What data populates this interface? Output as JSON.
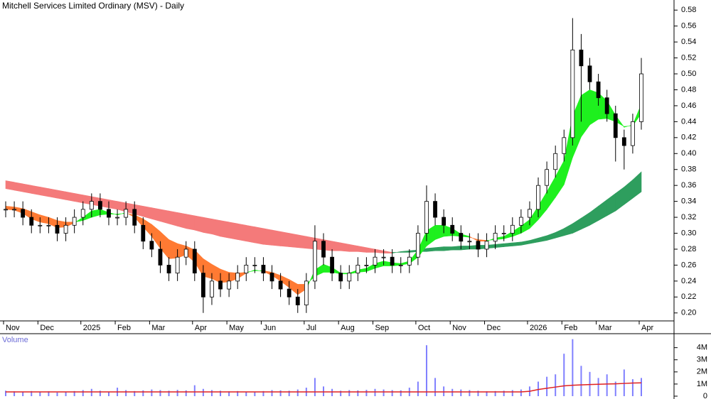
{
  "chart_data": {
    "type": "candlestick",
    "title": "Mitchell Services Limited Ordinary (MSV) - Daily",
    "volume_title": "Volume",
    "categories": [
      "Nov",
      null,
      null,
      null,
      "Dec",
      null,
      null,
      null,
      null,
      "2025",
      null,
      null,
      null,
      "Feb",
      null,
      null,
      null,
      "Mar",
      null,
      null,
      null,
      null,
      "Apr",
      null,
      null,
      null,
      "May",
      null,
      null,
      null,
      "Jun",
      null,
      null,
      null,
      null,
      "Jul",
      null,
      null,
      null,
      "Aug",
      null,
      null,
      null,
      "Sep",
      null,
      null,
      null,
      null,
      "Oct",
      null,
      null,
      null,
      "Nov",
      null,
      null,
      null,
      "Dec",
      null,
      null,
      null,
      null,
      "2026",
      null,
      null,
      null,
      "Feb",
      null,
      null,
      null,
      "Mar",
      null,
      null,
      null,
      null,
      "Apr"
    ],
    "open": [
      0.33,
      0.33,
      0.33,
      0.32,
      0.31,
      0.31,
      0.31,
      0.3,
      0.31,
      0.32,
      0.33,
      0.34,
      0.33,
      0.32,
      0.32,
      0.33,
      0.31,
      0.29,
      0.28,
      0.26,
      0.25,
      0.27,
      0.28,
      0.25,
      0.22,
      0.24,
      0.23,
      0.24,
      0.25,
      0.26,
      0.26,
      0.25,
      0.24,
      0.23,
      0.22,
      0.21,
      0.24,
      0.29,
      0.27,
      0.25,
      0.24,
      0.25,
      0.26,
      0.26,
      0.27,
      0.27,
      0.26,
      0.26,
      0.27,
      0.3,
      0.34,
      0.32,
      0.31,
      0.3,
      0.29,
      0.29,
      0.28,
      0.29,
      0.3,
      0.3,
      0.31,
      0.32,
      0.33,
      0.36,
      0.38,
      0.4,
      0.42,
      0.53,
      0.51,
      0.49,
      0.47,
      0.45,
      0.42,
      0.41,
      0.44
    ],
    "high": [
      0.34,
      0.34,
      0.34,
      0.33,
      0.32,
      0.32,
      0.32,
      0.32,
      0.33,
      0.34,
      0.35,
      0.35,
      0.34,
      0.33,
      0.34,
      0.34,
      0.32,
      0.3,
      0.29,
      0.27,
      0.28,
      0.29,
      0.29,
      0.26,
      0.25,
      0.25,
      0.25,
      0.26,
      0.27,
      0.27,
      0.27,
      0.26,
      0.25,
      0.24,
      0.23,
      0.25,
      0.31,
      0.3,
      0.28,
      0.26,
      0.26,
      0.27,
      0.27,
      0.28,
      0.28,
      0.28,
      0.27,
      0.28,
      0.31,
      0.36,
      0.35,
      0.33,
      0.32,
      0.31,
      0.3,
      0.3,
      0.3,
      0.31,
      0.31,
      0.32,
      0.33,
      0.34,
      0.37,
      0.39,
      0.41,
      0.43,
      0.57,
      0.55,
      0.52,
      0.5,
      0.48,
      0.46,
      0.43,
      0.45,
      0.52
    ],
    "low": [
      0.32,
      0.32,
      0.31,
      0.3,
      0.3,
      0.3,
      0.29,
      0.29,
      0.3,
      0.31,
      0.32,
      0.32,
      0.31,
      0.31,
      0.31,
      0.3,
      0.28,
      0.27,
      0.25,
      0.24,
      0.24,
      0.26,
      0.24,
      0.2,
      0.21,
      0.22,
      0.22,
      0.23,
      0.24,
      0.25,
      0.24,
      0.23,
      0.22,
      0.21,
      0.2,
      0.2,
      0.23,
      0.26,
      0.24,
      0.23,
      0.23,
      0.24,
      0.25,
      0.25,
      0.26,
      0.25,
      0.25,
      0.25,
      0.26,
      0.29,
      0.31,
      0.3,
      0.29,
      0.28,
      0.28,
      0.27,
      0.27,
      0.28,
      0.29,
      0.29,
      0.3,
      0.31,
      0.32,
      0.35,
      0.37,
      0.39,
      0.41,
      0.44,
      0.48,
      0.46,
      0.44,
      0.39,
      0.38,
      0.4,
      0.43
    ],
    "close": [
      0.33,
      0.33,
      0.32,
      0.31,
      0.31,
      0.31,
      0.3,
      0.31,
      0.32,
      0.33,
      0.34,
      0.33,
      0.32,
      0.32,
      0.33,
      0.31,
      0.29,
      0.28,
      0.26,
      0.25,
      0.27,
      0.28,
      0.25,
      0.22,
      0.24,
      0.23,
      0.24,
      0.25,
      0.26,
      0.26,
      0.25,
      0.24,
      0.23,
      0.22,
      0.21,
      0.24,
      0.29,
      0.27,
      0.25,
      0.24,
      0.25,
      0.26,
      0.26,
      0.27,
      0.27,
      0.26,
      0.26,
      0.27,
      0.3,
      0.34,
      0.32,
      0.31,
      0.3,
      0.29,
      0.29,
      0.28,
      0.29,
      0.3,
      0.3,
      0.31,
      0.32,
      0.33,
      0.36,
      0.38,
      0.4,
      0.42,
      0.53,
      0.51,
      0.49,
      0.47,
      0.45,
      0.42,
      0.41,
      0.44,
      0.5
    ],
    "up_color": "#ffffff",
    "down_color": "#000000",
    "ribbons": [
      {
        "fast": [
          0.33,
          0.329,
          0.325,
          0.318,
          0.314,
          0.312,
          0.307,
          0.308,
          0.313,
          0.32,
          0.328,
          0.33,
          0.326,
          0.323,
          0.326,
          0.32,
          0.308,
          0.296,
          0.281,
          0.268,
          0.269,
          0.273,
          0.264,
          0.246,
          0.243,
          0.238,
          0.239,
          0.243,
          0.25,
          0.254,
          0.252,
          0.247,
          0.24,
          0.232,
          0.223,
          0.23,
          0.254,
          0.261,
          0.257,
          0.25,
          0.25,
          0.254,
          0.256,
          0.262,
          0.265,
          0.263,
          0.262,
          0.265,
          0.279,
          0.303,
          0.31,
          0.31,
          0.306,
          0.299,
          0.296,
          0.29,
          0.29,
          0.294,
          0.296,
          0.302,
          0.309,
          0.317,
          0.334,
          0.352,
          0.371,
          0.391,
          0.447,
          0.473,
          0.48,
          0.476,
          0.466,
          0.448,
          0.433,
          0.436,
          0.462
        ],
        "slow": [
          0.334,
          0.333,
          0.331,
          0.327,
          0.323,
          0.32,
          0.316,
          0.314,
          0.314,
          0.316,
          0.32,
          0.323,
          0.324,
          0.324,
          0.325,
          0.323,
          0.318,
          0.311,
          0.302,
          0.292,
          0.287,
          0.284,
          0.279,
          0.268,
          0.261,
          0.255,
          0.251,
          0.25,
          0.251,
          0.253,
          0.253,
          0.251,
          0.247,
          0.242,
          0.236,
          0.236,
          0.246,
          0.251,
          0.251,
          0.249,
          0.249,
          0.251,
          0.252,
          0.256,
          0.259,
          0.259,
          0.26,
          0.262,
          0.27,
          0.284,
          0.292,
          0.296,
          0.297,
          0.296,
          0.295,
          0.292,
          0.291,
          0.292,
          0.293,
          0.296,
          0.3,
          0.306,
          0.317,
          0.33,
          0.345,
          0.361,
          0.395,
          0.421,
          0.436,
          0.443,
          0.444,
          0.44,
          0.434,
          0.435,
          0.45
        ],
        "up_color": "#1ef01e",
        "down_color": "#ff7a33"
      },
      {
        "fast": [
          0.356,
          0.354,
          0.352,
          0.35,
          0.348,
          0.346,
          0.344,
          0.342,
          0.34,
          0.338,
          0.336,
          0.334,
          0.332,
          0.33,
          0.327,
          0.324,
          0.321,
          0.318,
          0.315,
          0.312,
          0.309,
          0.306,
          0.304,
          0.301,
          0.299,
          0.296,
          0.294,
          0.292,
          0.29,
          0.288,
          0.286,
          0.285,
          0.284,
          0.283,
          0.282,
          0.281,
          0.28,
          0.279,
          0.278,
          0.278,
          0.277,
          0.277,
          0.276,
          0.276,
          0.275,
          0.275,
          0.277,
          0.278,
          0.279,
          0.281,
          0.282,
          0.283,
          0.283,
          0.284,
          0.284,
          0.285,
          0.285,
          0.286,
          0.287,
          0.288,
          0.289,
          0.291,
          0.294,
          0.297,
          0.301,
          0.306,
          0.312,
          0.319,
          0.326,
          0.334,
          0.342,
          0.35,
          0.358,
          0.367,
          0.377
        ],
        "slow": [
          0.366,
          0.364,
          0.362,
          0.36,
          0.358,
          0.356,
          0.354,
          0.352,
          0.35,
          0.348,
          0.346,
          0.344,
          0.342,
          0.34,
          0.338,
          0.336,
          0.334,
          0.332,
          0.33,
          0.328,
          0.326,
          0.324,
          0.322,
          0.32,
          0.318,
          0.316,
          0.314,
          0.312,
          0.31,
          0.308,
          0.306,
          0.304,
          0.302,
          0.3,
          0.298,
          0.296,
          0.294,
          0.292,
          0.29,
          0.288,
          0.286,
          0.284,
          0.282,
          0.28,
          0.278,
          0.276,
          0.276,
          0.276,
          0.277,
          0.277,
          0.278,
          0.278,
          0.279,
          0.279,
          0.28,
          0.28,
          0.281,
          0.282,
          0.283,
          0.284,
          0.285,
          0.287,
          0.289,
          0.291,
          0.294,
          0.297,
          0.3,
          0.305,
          0.31,
          0.316,
          0.322,
          0.328,
          0.336,
          0.344,
          0.352
        ],
        "up_color": "#2e9e5e",
        "down_color": "#f47a7a"
      }
    ],
    "ylim": [
      0.19,
      0.59
    ],
    "yticks": [
      {
        "value": 0.2,
        "label": "0.20"
      },
      0.22,
      0.24,
      0.26,
      0.28,
      {
        "value": 0.3,
        "label": "0.30"
      },
      0.32,
      0.34,
      0.36,
      0.38,
      {
        "value": 0.4,
        "label": "0.40"
      },
      0.42,
      0.44,
      0.46,
      0.48,
      {
        "value": 0.5,
        "label": "0.50"
      },
      0.52,
      0.54,
      0.56,
      0.58
    ],
    "volume": [
      450000,
      400000,
      380000,
      420000,
      350000,
      400000,
      300000,
      380000,
      420000,
      500000,
      600000,
      450000,
      380000,
      700000,
      500000,
      420000,
      480000,
      550000,
      500000,
      450000,
      520000,
      480000,
      900000,
      600000,
      500000,
      450000,
      400000,
      420000,
      380000,
      350000,
      420000,
      500000,
      480000,
      450000,
      550000,
      700000,
      1500000,
      800000,
      600000,
      450000,
      500000,
      480000,
      520000,
      600000,
      550000,
      500000,
      480000,
      700000,
      1200000,
      4200000,
      1500000,
      800000,
      600000,
      550000,
      500000,
      450000,
      400000,
      420000,
      450000,
      500000,
      550000,
      800000,
      1200000,
      1600000,
      1800000,
      3500000,
      4700000,
      2500000,
      2000000,
      1500000,
      1800000,
      1200000,
      2200000,
      1400000,
      1500000
    ],
    "volume_color": "#8080ff",
    "volume_average": [
      350000,
      350000,
      350000,
      350000,
      350000,
      350000,
      350000,
      350000,
      350000,
      350000,
      350000,
      350000,
      350000,
      350000,
      350000,
      350000,
      350000,
      350000,
      350000,
      350000,
      350000,
      350000,
      350000,
      350000,
      350000,
      350000,
      350000,
      350000,
      350000,
      350000,
      350000,
      350000,
      350000,
      350000,
      350000,
      350000,
      350000,
      350000,
      350000,
      350000,
      350000,
      350000,
      350000,
      350000,
      350000,
      350000,
      350000,
      350000,
      350000,
      350000,
      350000,
      350000,
      350000,
      350000,
      350000,
      350000,
      350000,
      350000,
      350000,
      350000,
      350000,
      400000,
      550000,
      650000,
      750000,
      850000,
      900000,
      930000,
      960000,
      980000,
      1000000,
      1020000,
      1050000,
      1080000,
      1100000
    ],
    "volume_average_color": "#e02020",
    "volume_ylim": [
      0,
      4800000
    ],
    "volume_yticks": [
      0,
      {
        "value": 1000000,
        "label": "1M"
      },
      {
        "value": 2000000,
        "label": "2M"
      },
      {
        "value": 3000000,
        "label": "3M"
      },
      {
        "value": 4000000,
        "label": "4M"
      }
    ]
  }
}
